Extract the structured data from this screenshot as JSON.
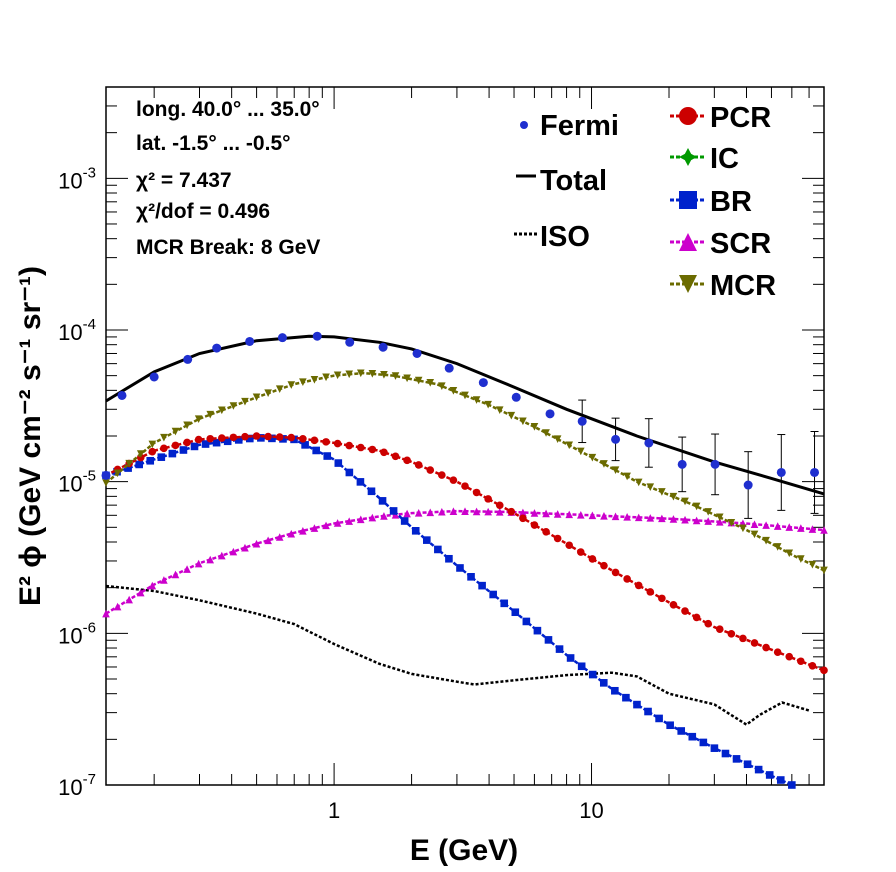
{
  "chart_data": {
    "type": "line",
    "xlabel": "E (GeV)",
    "ylabel": "E² ϕ (GeV cm⁻² s⁻¹ sr⁻¹)",
    "xscale": "log",
    "yscale": "log",
    "xlim": [
      0.13,
      80
    ],
    "ylim": [
      1e-07,
      0.004
    ],
    "x_tick_labels": [
      "1",
      "10"
    ],
    "y_tick_labels": [
      {
        "base": "10",
        "exp": "-7"
      },
      {
        "base": "10",
        "exp": "-6"
      },
      {
        "base": "10",
        "exp": "-5"
      },
      {
        "base": "10",
        "exp": "-4"
      },
      {
        "base": "10",
        "exp": "-3"
      }
    ],
    "grid": false,
    "legend_position": "top-right",
    "info_box": [
      "long. 40.0° ... 35.0°",
      "lat. -1.5° ... -0.5°",
      "χ² = 7.437",
      "χ²/dof = 0.496",
      "MCR Break:  8 GeV"
    ],
    "series": [
      {
        "name": "Fermi",
        "color": "#1f2fcf",
        "style": "points",
        "marker": "circle",
        "x": [
          0.13,
          0.15,
          0.2,
          0.27,
          0.35,
          0.47,
          0.63,
          0.86,
          1.15,
          1.55,
          2.1,
          2.8,
          3.8,
          5.1,
          6.9,
          9.2,
          12.4,
          16.7,
          22.5,
          30.2,
          40.6,
          54.6,
          73.5
        ],
        "y": [
          1.1e-05,
          3.7e-05,
          4.9e-05,
          6.4e-05,
          7.6e-05,
          8.4e-05,
          8.9e-05,
          9.1e-05,
          8.3e-05,
          7.7e-05,
          7e-05,
          5.6e-05,
          4.5e-05,
          3.6e-05,
          2.8e-05,
          2.5e-05,
          1.9e-05,
          1.8e-05,
          1.3e-05,
          1.3e-05,
          9.5e-06,
          1.15e-05,
          1.15e-05
        ],
        "yerr": [
          0,
          0,
          0,
          0,
          0,
          0,
          0,
          0,
          0,
          0,
          0,
          0,
          0,
          0,
          0,
          0.14,
          0.14,
          0.16,
          0.18,
          0.2,
          0.22,
          0.25,
          0.27
        ]
      },
      {
        "name": "Total",
        "color": "#000000",
        "style": "solid",
        "x": [
          0.13,
          0.2,
          0.3,
          0.5,
          0.8,
          1.0,
          1.5,
          2.0,
          3.0,
          5.0,
          8.0,
          15.0,
          30.0,
          50.0,
          80.0
        ],
        "y": [
          3.4e-05,
          5.3e-05,
          7e-05,
          8.5e-05,
          9.1e-05,
          9e-05,
          8.3e-05,
          7.5e-05,
          6e-05,
          4.2e-05,
          3e-05,
          2e-05,
          1.35e-05,
          1.05e-05,
          8.3e-06
        ]
      },
      {
        "name": "ISO",
        "color": "#000000",
        "style": "dotted",
        "x": [
          0.13,
          0.2,
          0.3,
          0.5,
          0.7,
          1.0,
          1.5,
          2.0,
          3.0,
          3.5,
          5.0,
          8.0,
          12.0,
          15.0,
          20.0,
          30.0,
          40.0,
          45.0,
          55.0,
          70.0
        ],
        "y": [
          2.05e-06,
          1.9e-06,
          1.65e-06,
          1.35e-06,
          1.15e-06,
          8.5e-07,
          6.3e-07,
          5.4e-07,
          4.8e-07,
          4.6e-07,
          4.9e-07,
          5.3e-07,
          5.5e-07,
          5.2e-07,
          4e-07,
          3.4e-07,
          2.5e-07,
          2.9e-07,
          3.5e-07,
          3.1e-07
        ]
      },
      {
        "name": "PCR",
        "color": "#cc0000",
        "style": "markers-line",
        "marker": "circle",
        "x": [
          0.13,
          0.2,
          0.3,
          0.5,
          0.7,
          1.0,
          1.5,
          2.0,
          3.0,
          5.0,
          8.0,
          12.0,
          20.0,
          30.0,
          50.0,
          80.0
        ],
        "y": [
          1.1e-05,
          1.6e-05,
          1.9e-05,
          2e-05,
          1.95e-05,
          1.8e-05,
          1.6e-05,
          1.35e-05,
          1e-05,
          6.2e-06,
          3.9e-06,
          2.6e-06,
          1.6e-06,
          1.1e-06,
          7.8e-07,
          5.7e-07
        ]
      },
      {
        "name": "IC",
        "color": "#009900",
        "style": "markers-line",
        "marker": "star",
        "x": [],
        "y": []
      },
      {
        "name": "BR",
        "color": "#0022cc",
        "style": "markers-line",
        "marker": "square",
        "x": [
          0.13,
          0.2,
          0.3,
          0.5,
          0.7,
          1.0,
          1.5,
          2.0,
          3.0,
          5.0,
          8.0,
          12.0,
          20.0,
          30.0,
          50.0,
          60.0
        ],
        "y": [
          1.1e-05,
          1.4e-05,
          1.75e-05,
          1.95e-05,
          1.9e-05,
          1.4e-05,
          7.8e-06,
          5e-06,
          2.8e-06,
          1.4e-06,
          7.2e-07,
          4.3e-07,
          2.5e-07,
          1.75e-07,
          1.15e-07,
          1e-07
        ]
      },
      {
        "name": "SCR",
        "color": "#cc00cc",
        "style": "markers-line",
        "marker": "triangle-up",
        "x": [
          0.13,
          0.2,
          0.3,
          0.5,
          0.7,
          1.0,
          1.5,
          2.0,
          3.0,
          5.0,
          10.0,
          20.0,
          40.0,
          80.0
        ],
        "y": [
          1.35e-06,
          2.1e-06,
          2.9e-06,
          3.9e-06,
          4.6e-06,
          5.3e-06,
          5.9e-06,
          6.2e-06,
          6.4e-06,
          6.3e-06,
          6e-06,
          5.7e-06,
          5.3e-06,
          4.8e-06
        ]
      },
      {
        "name": "MCR",
        "color": "#6b6b00",
        "style": "markers-line",
        "marker": "triangle-down",
        "x": [
          0.13,
          0.2,
          0.3,
          0.5,
          0.7,
          1.0,
          1.3,
          1.7,
          2.5,
          4.0,
          6.0,
          10.0,
          15.0,
          25.0,
          40.0,
          60.0,
          80.0
        ],
        "y": [
          9.8e-06,
          1.8e-05,
          2.6e-05,
          3.6e-05,
          4.4e-05,
          5e-05,
          5.2e-05,
          5e-05,
          4.4e-05,
          3.2e-05,
          2.3e-05,
          1.45e-05,
          1e-05,
          7e-06,
          4.8e-06,
          3.3e-06,
          2.6e-06
        ]
      }
    ]
  }
}
